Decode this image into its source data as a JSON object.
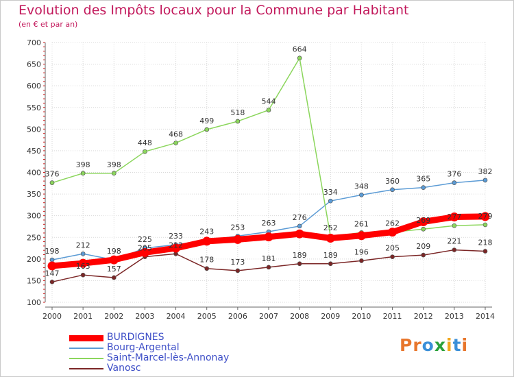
{
  "header": {
    "title": "Evolution des Impôts locaux pour la Commune par Habitant",
    "subtitle": "(en € et par an)"
  },
  "logo": {
    "text": "Proxiti",
    "letter_colors": [
      "#e8762c",
      "#e8762c",
      "#3a8fd8",
      "#2aa13b",
      "#f1a81e",
      "#3a8fd8",
      "#e8762c"
    ]
  },
  "chart_data": {
    "type": "line",
    "x": [
      2000,
      2001,
      2002,
      2003,
      2004,
      2005,
      2006,
      2007,
      2008,
      2009,
      2010,
      2011,
      2012,
      2013,
      2014
    ],
    "ylim": [
      100,
      700
    ],
    "yticks": [
      100,
      150,
      200,
      250,
      300,
      350,
      400,
      450,
      500,
      550,
      600,
      650,
      700
    ],
    "grid": true,
    "legend_position": "bottom-left",
    "series": [
      {
        "name": "BURDIGNES",
        "color": "#ff0000",
        "values": [
          184,
          190,
          198,
          215,
          225,
          241,
          245,
          251,
          258,
          248,
          254,
          262,
          286,
          297,
          298
        ],
        "show_labels": false
      },
      {
        "name": "Bourg-Argental",
        "color": "#5b9bd5",
        "values": [
          198,
          212,
          198,
          225,
          233,
          243,
          253,
          263,
          276,
          334,
          348,
          360,
          365,
          376,
          382
        ],
        "show_labels": true
      },
      {
        "name": "Saint-Marcel-lès-Annonay",
        "color": "#8bd65c",
        "values": [
          376,
          398,
          398,
          448,
          468,
          499,
          518,
          544,
          664,
          252,
          261,
          262,
          269,
          277,
          279
        ],
        "show_labels": true
      },
      {
        "name": "Vanosc",
        "color": "#7b2626",
        "values": [
          147,
          163,
          157,
          205,
          212,
          178,
          173,
          181,
          189,
          189,
          196,
          205,
          209,
          221,
          218
        ],
        "show_labels": true
      }
    ]
  }
}
